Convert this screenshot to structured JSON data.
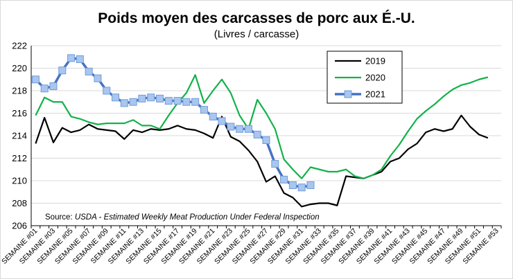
{
  "chart_data": {
    "type": "line",
    "title": "Poids moyen des carcasses de porc aux É.-U.",
    "subtitle": "(Livres / carcasse)",
    "source_prefix": "Source: ",
    "source_body": "USDA - Estimated Weekly Meat Production Under Federal Inspection",
    "ylim": [
      206,
      222
    ],
    "yticks": [
      206,
      208,
      210,
      212,
      214,
      216,
      218,
      220,
      222
    ],
    "tick_labels": [
      "SEMAINE #01",
      "SEMAINE #03",
      "SEMAINE #05",
      "SEMAINE #07",
      "SEMAINE #09",
      "SEMAINE #11",
      "SEMAINE #13",
      "SEMAINE #15",
      "SEMAINE #17",
      "SEMAINE #19",
      "SEMAINE #21",
      "SEMAINE #23",
      "SEMAINE #25",
      "SEMAINE #27",
      "SEMAINE #29",
      "SEMAINE #31",
      "SEMAINE #33",
      "SEMAINE #35",
      "SEMAINE #37",
      "SEMAINE #39",
      "SEMAINE #41",
      "SEMAINE #43",
      "SEMAINE #45",
      "SEMAINE #47",
      "SEMAINE #49",
      "SEMAINE #51",
      "SEMAINE #53"
    ],
    "grid": "horizontal",
    "legend_position": "top-right",
    "series": [
      {
        "name": "2019",
        "color": "#000000",
        "marker": "none",
        "values": [
          213.3,
          215.6,
          213.4,
          214.7,
          214.3,
          214.5,
          215.0,
          214.6,
          214.5,
          214.4,
          213.7,
          214.5,
          214.3,
          214.6,
          214.5,
          214.6,
          214.9,
          214.6,
          214.5,
          214.2,
          213.8,
          215.7,
          213.9,
          213.5,
          212.7,
          211.7,
          209.9,
          210.4,
          208.9,
          208.5,
          207.7,
          207.9,
          208.0,
          208.0,
          207.8,
          210.4,
          210.3,
          210.2,
          210.5,
          210.8,
          211.7,
          212.0,
          212.8,
          213.3,
          214.3,
          214.6,
          214.4,
          214.6,
          215.8,
          214.8,
          214.1,
          213.8
        ]
      },
      {
        "name": "2020",
        "color": "#13b14a",
        "marker": "none",
        "values": [
          215.8,
          217.4,
          217.0,
          217.0,
          215.7,
          215.5,
          215.2,
          215.0,
          215.1,
          215.1,
          215.1,
          215.4,
          214.9,
          214.9,
          214.6,
          215.8,
          216.9,
          217.8,
          219.4,
          216.9,
          218.0,
          219.0,
          217.8,
          215.8,
          214.6,
          217.2,
          216.0,
          214.6,
          211.9,
          211.0,
          210.2,
          211.2,
          211.0,
          210.8,
          210.8,
          211.0,
          210.4,
          210.2,
          210.5,
          211.0,
          212.2,
          213.2,
          214.4,
          215.5,
          216.2,
          216.8,
          217.5,
          218.1,
          218.5,
          218.7,
          219.0,
          219.2
        ]
      },
      {
        "name": "2021",
        "color": "#4472c4",
        "marker": "square",
        "marker_fill": "#a9c6ef",
        "values": [
          219.0,
          218.2,
          218.4,
          219.8,
          220.9,
          220.8,
          219.7,
          219.1,
          218.0,
          217.4,
          216.9,
          217.0,
          217.3,
          217.4,
          217.3,
          217.1,
          217.1,
          217.0,
          217.0,
          216.3,
          215.7,
          215.3,
          214.8,
          214.6,
          214.6,
          214.1,
          213.6,
          211.5,
          210.1,
          209.6,
          209.4,
          209.6
        ]
      }
    ]
  }
}
